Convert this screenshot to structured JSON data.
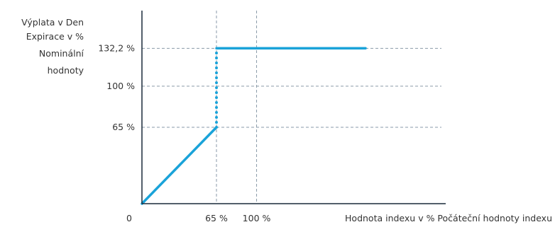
{
  "chart_data": {
    "type": "line",
    "ylabel_lines": [
      "Výplata v Den",
      "Expirace v %",
      "Nominální",
      "hodnoty"
    ],
    "xlabel": "Hodnota indexu v % Počáteční hodnoty indexu",
    "origin_label": "0",
    "x_ticks": [
      {
        "value": 65,
        "label": "65 %"
      },
      {
        "value": 100,
        "label": "100 %"
      }
    ],
    "y_ticks": [
      {
        "value": 65,
        "label": "65 %"
      },
      {
        "value": 100,
        "label": "100 %"
      },
      {
        "value": 132.2,
        "label": "132,2 %"
      }
    ],
    "grid": "dashed at tick values",
    "series": [
      {
        "segments": [
          {
            "style": "solid",
            "points": [
              [
                0,
                0
              ],
              [
                65,
                65
              ]
            ]
          },
          {
            "style": "dotted",
            "points": [
              [
                65,
                65
              ],
              [
                65,
                132.2
              ]
            ]
          },
          {
            "style": "solid",
            "points": [
              [
                65,
                132.2
              ],
              [
                195,
                132.2
              ]
            ]
          }
        ]
      }
    ],
    "colors": {
      "series": "#1aa3d9",
      "grid": "#8a9aa8",
      "axis": "#1a2a3a",
      "text": "#333333"
    }
  }
}
